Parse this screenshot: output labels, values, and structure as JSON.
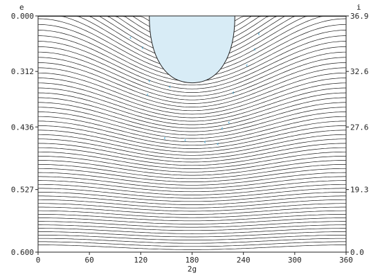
{
  "chart_data": {
    "type": "contour",
    "xlabel": "2g",
    "left_axis_label": "e",
    "right_axis_label": "i",
    "x_ticks": [
      "0",
      "60",
      "120",
      "180",
      "240",
      "300",
      "360"
    ],
    "left_ticks": [
      "0.000",
      "0.312",
      "0.436",
      "0.527",
      "0.600"
    ],
    "right_ticks": [
      "36.9",
      "32.6",
      "27.6",
      "19.3",
      "0.0"
    ],
    "xlim": [
      0,
      360
    ],
    "ylim": [
      0.6,
      0.0
    ],
    "grid": false,
    "contour_count": 62,
    "forbidden_region": {
      "x_range": [
        130,
        230
      ],
      "e_bottom": 0.17
    },
    "orbit_markers": [
      {
        "x": 108,
        "e": 0.06
      },
      {
        "x": 122,
        "e": 0.085
      },
      {
        "x": 130,
        "e": 0.17
      },
      {
        "x": 128,
        "e": 0.205
      },
      {
        "x": 154,
        "e": 0.185
      },
      {
        "x": 148,
        "e": 0.315
      },
      {
        "x": 172,
        "e": 0.32
      },
      {
        "x": 195,
        "e": 0.325
      },
      {
        "x": 210,
        "e": 0.33
      },
      {
        "x": 215,
        "e": 0.29
      },
      {
        "x": 223,
        "e": 0.275
      },
      {
        "x": 228,
        "e": 0.2
      },
      {
        "x": 244,
        "e": 0.13
      },
      {
        "x": 253,
        "e": 0.09
      },
      {
        "x": 258,
        "e": 0.05
      }
    ],
    "colors": {
      "contour": "#1a1a1a",
      "forbidden_fill": "#d8ecf6",
      "marker": "#2b9fd1"
    }
  }
}
